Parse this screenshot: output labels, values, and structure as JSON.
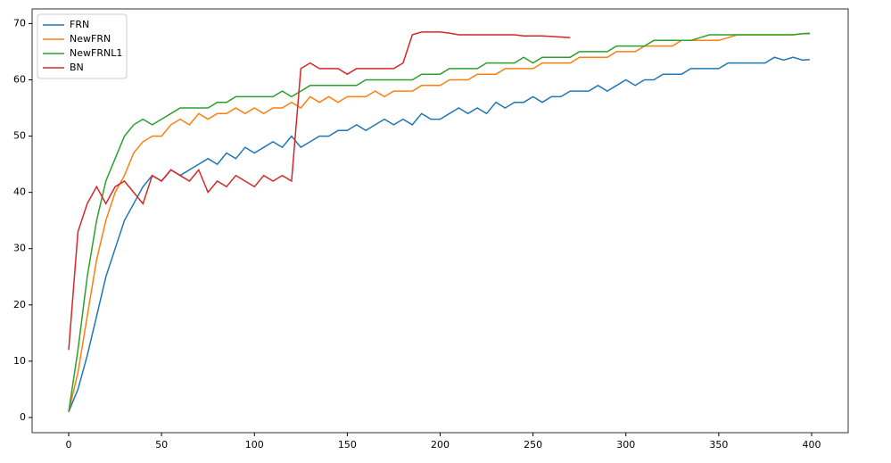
{
  "chart_data": {
    "type": "line",
    "x": [
      0,
      5,
      10,
      15,
      20,
      25,
      30,
      35,
      40,
      45,
      50,
      55,
      60,
      65,
      70,
      75,
      80,
      85,
      90,
      95,
      100,
      105,
      110,
      115,
      120,
      125,
      130,
      135,
      140,
      145,
      150,
      155,
      160,
      165,
      170,
      175,
      180,
      185,
      190,
      195,
      200,
      205,
      210,
      215,
      220,
      225,
      230,
      235,
      240,
      245,
      250,
      255,
      260,
      265,
      270,
      275,
      280,
      285,
      290,
      295,
      300,
      305,
      310,
      315,
      320,
      325,
      330,
      335,
      340,
      345,
      350,
      355,
      360,
      365,
      370,
      375,
      380,
      385,
      390,
      395,
      399
    ],
    "series": [
      {
        "name": "FRN",
        "color": "#1f77b4",
        "values": [
          1,
          5,
          11,
          18,
          25,
          30,
          35,
          38,
          41,
          43,
          42,
          44,
          43,
          44,
          45,
          46,
          45,
          47,
          46,
          48,
          47,
          48,
          49,
          48,
          50,
          48,
          49,
          50,
          50,
          51,
          51,
          52,
          51,
          52,
          53,
          52,
          53,
          52,
          54,
          53,
          53,
          54,
          55,
          54,
          55,
          54,
          56,
          55,
          56,
          56,
          57,
          56,
          57,
          57,
          58,
          58,
          58,
          59,
          58,
          59,
          60,
          59,
          60,
          60,
          61,
          61,
          61,
          62,
          62,
          62,
          62,
          63,
          63,
          63,
          63,
          63,
          64,
          63.5,
          64,
          63.5,
          63.6
        ]
      },
      {
        "name": "NewFRN",
        "color": "#ff7f0e",
        "values": [
          1,
          8,
          18,
          28,
          35,
          40,
          43,
          47,
          49,
          50,
          50,
          52,
          53,
          52,
          54,
          53,
          54,
          54,
          55,
          54,
          55,
          54,
          55,
          55,
          56,
          55,
          57,
          56,
          57,
          56,
          57,
          57,
          57,
          58,
          57,
          58,
          58,
          58,
          59,
          59,
          59,
          60,
          60,
          60,
          61,
          61,
          61,
          62,
          62,
          62,
          62,
          63,
          63,
          63,
          63,
          64,
          64,
          64,
          64,
          65,
          65,
          65,
          66,
          66,
          66,
          66,
          67,
          67,
          67,
          67,
          67,
          67.5,
          68,
          68,
          68,
          68,
          68,
          68,
          68,
          68.2,
          68.3
        ]
      },
      {
        "name": "NewFRNL1",
        "color": "#2ca02c",
        "values": [
          1,
          12,
          25,
          35,
          42,
          46,
          50,
          52,
          53,
          52,
          53,
          54,
          55,
          55,
          55,
          55,
          56,
          56,
          57,
          57,
          57,
          57,
          57,
          58,
          57,
          58,
          59,
          59,
          59,
          59,
          59,
          59,
          60,
          60,
          60,
          60,
          60,
          60,
          61,
          61,
          61,
          62,
          62,
          62,
          62,
          63,
          63,
          63,
          63,
          64,
          63,
          64,
          64,
          64,
          64,
          65,
          65,
          65,
          65,
          66,
          66,
          66,
          66,
          67,
          67,
          67,
          67,
          67,
          67.5,
          68,
          68,
          68,
          68,
          68,
          68,
          68,
          68,
          68,
          68,
          68.2,
          68.2
        ]
      },
      {
        "name": "BN",
        "color": "#d62728",
        "values": [
          12,
          33,
          38,
          41,
          38,
          41,
          42,
          40,
          38,
          43,
          42,
          44,
          43,
          42,
          44,
          40,
          42,
          41,
          43,
          42,
          41,
          43,
          42,
          43,
          42,
          62,
          63,
          62,
          62,
          62,
          61,
          62,
          62,
          62,
          62,
          62,
          63,
          68,
          68.5,
          68.5,
          68.5,
          68.3,
          68,
          68,
          68,
          68,
          68,
          68,
          68,
          67.8,
          67.8,
          67.8,
          67.7,
          67.6,
          67.5,
          null,
          null,
          null,
          null,
          null,
          null,
          null,
          null,
          null,
          null,
          null,
          null,
          null,
          null,
          null,
          null,
          null,
          null,
          null,
          null,
          null,
          null,
          null,
          null,
          null,
          null
        ]
      }
    ],
    "xlim": [
      -19.7,
      419.7
    ],
    "ylim": [
      -2.7,
      72.6
    ],
    "xticks": [
      0,
      50,
      100,
      150,
      200,
      250,
      300,
      350,
      400
    ],
    "yticks": [
      0,
      10,
      20,
      30,
      40,
      50,
      60,
      70
    ],
    "legend": "upper left"
  }
}
